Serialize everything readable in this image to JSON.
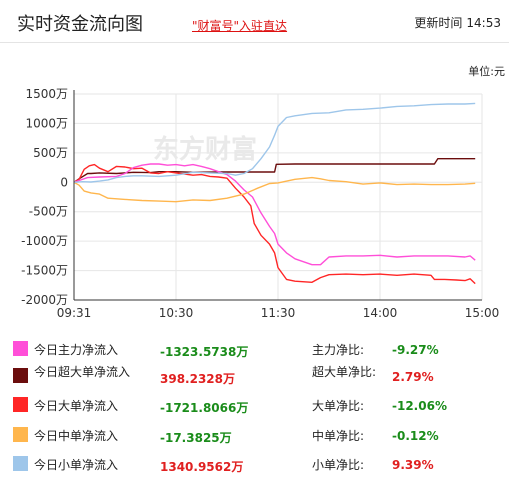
{
  "header": {
    "title": "实时资金流向图",
    "link": "\"财富号\"入驻直达",
    "update_label": "更新时间",
    "update_time": "14:53"
  },
  "unit_label": "单位:元",
  "watermark": "东方财富",
  "colors": {
    "main": "#ff4fd8",
    "super": "#6b0d0d",
    "large": "#ff2626",
    "medium": "#ffb64d",
    "small": "#9ec6ea",
    "pos": "#e02020",
    "neg": "#1a8c1a"
  },
  "chart_data": {
    "type": "line",
    "title": "实时资金流向图",
    "unit": "单位:元",
    "x_ticks": [
      "09:31",
      "10:30",
      "11:30",
      "14:00",
      "15:00"
    ],
    "y_ticks": [
      "1500万",
      "1000万",
      "500万",
      "0",
      "-500万",
      "-1000万",
      "-1500万",
      "-2000万"
    ],
    "y_tick_values": [
      1500,
      1000,
      500,
      0,
      -500,
      -1000,
      -1500,
      -2000
    ],
    "ylim": [
      -2000,
      1500
    ],
    "x_unit": "trading minute index (0 = 09:30, 60 = 10:30, 120 = 11:30, 180 = 14:00, 240 = 15:00)",
    "grid": true,
    "series": [
      {
        "name": "今日超大单净流入",
        "color_key": "super",
        "points": [
          [
            0,
            0
          ],
          [
            3,
            60
          ],
          [
            8,
            150
          ],
          [
            10,
            150
          ],
          [
            15,
            160
          ],
          [
            25,
            150
          ],
          [
            35,
            170
          ],
          [
            45,
            165
          ],
          [
            50,
            180
          ],
          [
            60,
            180
          ],
          [
            70,
            170
          ],
          [
            85,
            175
          ],
          [
            100,
            175
          ],
          [
            118,
            175
          ],
          [
            119,
            305
          ],
          [
            130,
            310
          ],
          [
            150,
            310
          ],
          [
            170,
            310
          ],
          [
            190,
            310
          ],
          [
            200,
            310
          ],
          [
            212,
            310
          ],
          [
            214,
            400
          ],
          [
            230,
            400
          ],
          [
            236,
            400
          ]
        ]
      },
      {
        "name": "今日大单净流入",
        "color_key": "large",
        "points": [
          [
            0,
            0
          ],
          [
            3,
            50
          ],
          [
            6,
            220
          ],
          [
            9,
            280
          ],
          [
            12,
            300
          ],
          [
            15,
            240
          ],
          [
            20,
            180
          ],
          [
            25,
            270
          ],
          [
            30,
            260
          ],
          [
            35,
            230
          ],
          [
            40,
            240
          ],
          [
            45,
            160
          ],
          [
            50,
            150
          ],
          [
            55,
            180
          ],
          [
            60,
            160
          ],
          [
            65,
            140
          ],
          [
            70,
            120
          ],
          [
            75,
            130
          ],
          [
            80,
            100
          ],
          [
            85,
            90
          ],
          [
            90,
            70
          ],
          [
            95,
            -100
          ],
          [
            100,
            -250
          ],
          [
            104,
            -400
          ],
          [
            106,
            -700
          ],
          [
            110,
            -900
          ],
          [
            115,
            -1050
          ],
          [
            118,
            -1200
          ],
          [
            120,
            -1450
          ],
          [
            125,
            -1650
          ],
          [
            130,
            -1680
          ],
          [
            140,
            -1700
          ],
          [
            145,
            -1620
          ],
          [
            150,
            -1570
          ],
          [
            160,
            -1560
          ],
          [
            170,
            -1570
          ],
          [
            180,
            -1560
          ],
          [
            190,
            -1580
          ],
          [
            200,
            -1560
          ],
          [
            210,
            -1580
          ],
          [
            212,
            -1650
          ],
          [
            218,
            -1650
          ],
          [
            225,
            -1660
          ],
          [
            230,
            -1670
          ],
          [
            233,
            -1640
          ],
          [
            236,
            -1722
          ]
        ]
      },
      {
        "name": "今日主力净流入",
        "color_key": "main",
        "points": [
          [
            0,
            0
          ],
          [
            3,
            30
          ],
          [
            8,
            80
          ],
          [
            15,
            90
          ],
          [
            25,
            100
          ],
          [
            30,
            150
          ],
          [
            35,
            250
          ],
          [
            40,
            290
          ],
          [
            45,
            310
          ],
          [
            50,
            310
          ],
          [
            55,
            290
          ],
          [
            60,
            300
          ],
          [
            65,
            280
          ],
          [
            70,
            300
          ],
          [
            75,
            270
          ],
          [
            80,
            230
          ],
          [
            85,
            180
          ],
          [
            90,
            130
          ],
          [
            95,
            20
          ],
          [
            100,
            -130
          ],
          [
            105,
            -250
          ],
          [
            110,
            -520
          ],
          [
            115,
            -750
          ],
          [
            118,
            -870
          ],
          [
            120,
            -1050
          ],
          [
            125,
            -1200
          ],
          [
            130,
            -1300
          ],
          [
            140,
            -1400
          ],
          [
            145,
            -1400
          ],
          [
            150,
            -1270
          ],
          [
            160,
            -1250
          ],
          [
            170,
            -1250
          ],
          [
            180,
            -1240
          ],
          [
            190,
            -1270
          ],
          [
            200,
            -1250
          ],
          [
            210,
            -1250
          ],
          [
            220,
            -1250
          ],
          [
            230,
            -1270
          ],
          [
            233,
            -1250
          ],
          [
            236,
            -1324
          ]
        ]
      },
      {
        "name": "今日中单净流入",
        "color_key": "medium",
        "points": [
          [
            0,
            0
          ],
          [
            3,
            -50
          ],
          [
            6,
            -150
          ],
          [
            10,
            -180
          ],
          [
            15,
            -200
          ],
          [
            20,
            -270
          ],
          [
            30,
            -290
          ],
          [
            40,
            -310
          ],
          [
            50,
            -320
          ],
          [
            60,
            -330
          ],
          [
            70,
            -300
          ],
          [
            80,
            -310
          ],
          [
            90,
            -270
          ],
          [
            100,
            -200
          ],
          [
            108,
            -100
          ],
          [
            115,
            -20
          ],
          [
            120,
            -10
          ],
          [
            130,
            50
          ],
          [
            140,
            80
          ],
          [
            145,
            60
          ],
          [
            150,
            30
          ],
          [
            160,
            10
          ],
          [
            170,
            -30
          ],
          [
            180,
            -10
          ],
          [
            190,
            -40
          ],
          [
            200,
            -30
          ],
          [
            210,
            -40
          ],
          [
            220,
            -40
          ],
          [
            230,
            -30
          ],
          [
            236,
            -17
          ]
        ]
      },
      {
        "name": "今日小单净流入",
        "color_key": "small",
        "points": [
          [
            0,
            0
          ],
          [
            5,
            10
          ],
          [
            10,
            5
          ],
          [
            15,
            20
          ],
          [
            20,
            40
          ],
          [
            25,
            80
          ],
          [
            30,
            100
          ],
          [
            35,
            110
          ],
          [
            40,
            110
          ],
          [
            50,
            100
          ],
          [
            60,
            120
          ],
          [
            70,
            170
          ],
          [
            80,
            160
          ],
          [
            90,
            150
          ],
          [
            95,
            120
          ],
          [
            100,
            150
          ],
          [
            105,
            230
          ],
          [
            110,
            400
          ],
          [
            115,
            600
          ],
          [
            118,
            800
          ],
          [
            120,
            950
          ],
          [
            125,
            1100
          ],
          [
            130,
            1130
          ],
          [
            140,
            1170
          ],
          [
            150,
            1180
          ],
          [
            160,
            1230
          ],
          [
            170,
            1240
          ],
          [
            180,
            1260
          ],
          [
            190,
            1290
          ],
          [
            200,
            1300
          ],
          [
            210,
            1320
          ],
          [
            220,
            1330
          ],
          [
            230,
            1330
          ],
          [
            236,
            1341
          ]
        ]
      }
    ]
  },
  "legend": [
    {
      "name": "今日主力净流入",
      "color_key": "main",
      "value": "-1323.5738万",
      "sign": "neg",
      "ratio_label": "主力净比:",
      "ratio": "-9.27%",
      "ratio_sign": "neg"
    },
    {
      "name": "今日超大单净流入",
      "color_key": "super",
      "value": "398.2328万",
      "sign": "pos",
      "ratio_label": "超大单净比:",
      "ratio": "2.79%",
      "ratio_sign": "pos"
    },
    {
      "name": "今日大单净流入",
      "color_key": "large",
      "value": "-1721.8066万",
      "sign": "neg",
      "ratio_label": "大单净比:",
      "ratio": "-12.06%",
      "ratio_sign": "neg"
    },
    {
      "name": "今日中单净流入",
      "color_key": "medium",
      "value": "-17.3825万",
      "sign": "neg",
      "ratio_label": "中单净比:",
      "ratio": "-0.12%",
      "ratio_sign": "neg"
    },
    {
      "name": "今日小单净流入",
      "color_key": "small",
      "value": "1340.9562万",
      "sign": "pos",
      "ratio_label": "小单净比:",
      "ratio": "9.39%",
      "ratio_sign": "pos"
    }
  ]
}
